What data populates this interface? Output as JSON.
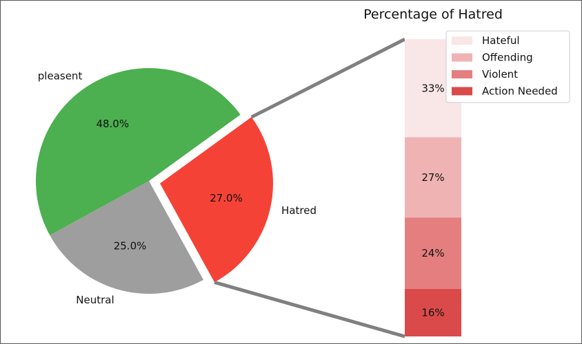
{
  "chart_data": [
    {
      "type": "pie",
      "title": "",
      "categories": [
        "pleasent",
        "Neutral",
        "Hatred"
      ],
      "values": [
        48.0,
        25.0,
        27.0
      ],
      "value_labels": [
        "48.0%",
        "25.0%",
        "27.0%"
      ],
      "colors": [
        "#4caf50",
        "#9e9e9e",
        "#f44336"
      ],
      "explode": [
        0,
        0,
        0.1
      ],
      "start_angle_deg": 36
    },
    {
      "type": "bar",
      "stacked": true,
      "title": "Percentage of Hatred",
      "categories": [
        "Hatred"
      ],
      "series": [
        {
          "name": "Hateful",
          "value": 0.33,
          "label": "33%",
          "color": "#f9e6e6"
        },
        {
          "name": "Offending",
          "value": 0.27,
          "label": "27%",
          "color": "#efb3b3"
        },
        {
          "name": "Violent",
          "value": 0.24,
          "label": "24%",
          "color": "#e57f7f"
        },
        {
          "name": "Action Needed",
          "value": 0.16,
          "label": "16%",
          "color": "#da4a4a"
        }
      ],
      "legend_position": "top-right",
      "connector_color": "#808080",
      "axes_visible": false
    }
  ]
}
